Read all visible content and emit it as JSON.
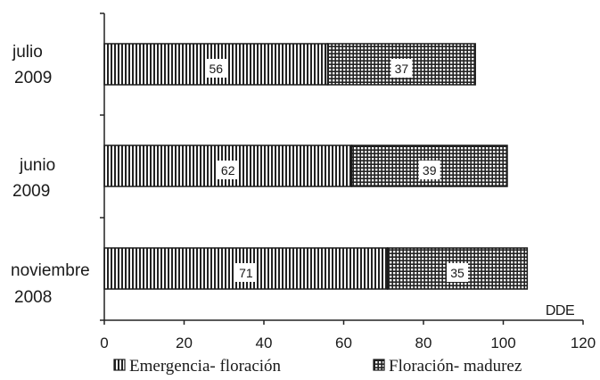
{
  "chart_data": {
    "type": "bar",
    "orientation": "horizontal",
    "stacked": true,
    "categories": [
      [
        "julio",
        "2009"
      ],
      [
        "junio",
        "2009"
      ],
      [
        "noviembre",
        "2008"
      ]
    ],
    "series": [
      {
        "name": "Emergencia- floración",
        "values": [
          56,
          62,
          71
        ],
        "pattern": "vertical-stripes"
      },
      {
        "name": "Floración- madurez",
        "values": [
          37,
          39,
          35
        ],
        "pattern": "grid"
      }
    ],
    "xlabel": "DDE",
    "xlim": [
      0,
      120
    ],
    "xticks": [
      0,
      20,
      40,
      60,
      80,
      100,
      120
    ],
    "grid": false,
    "legend_position": "bottom",
    "colors": {
      "text": "#1a1a1a",
      "stripe": "#222222",
      "background": "#ffffff"
    }
  }
}
